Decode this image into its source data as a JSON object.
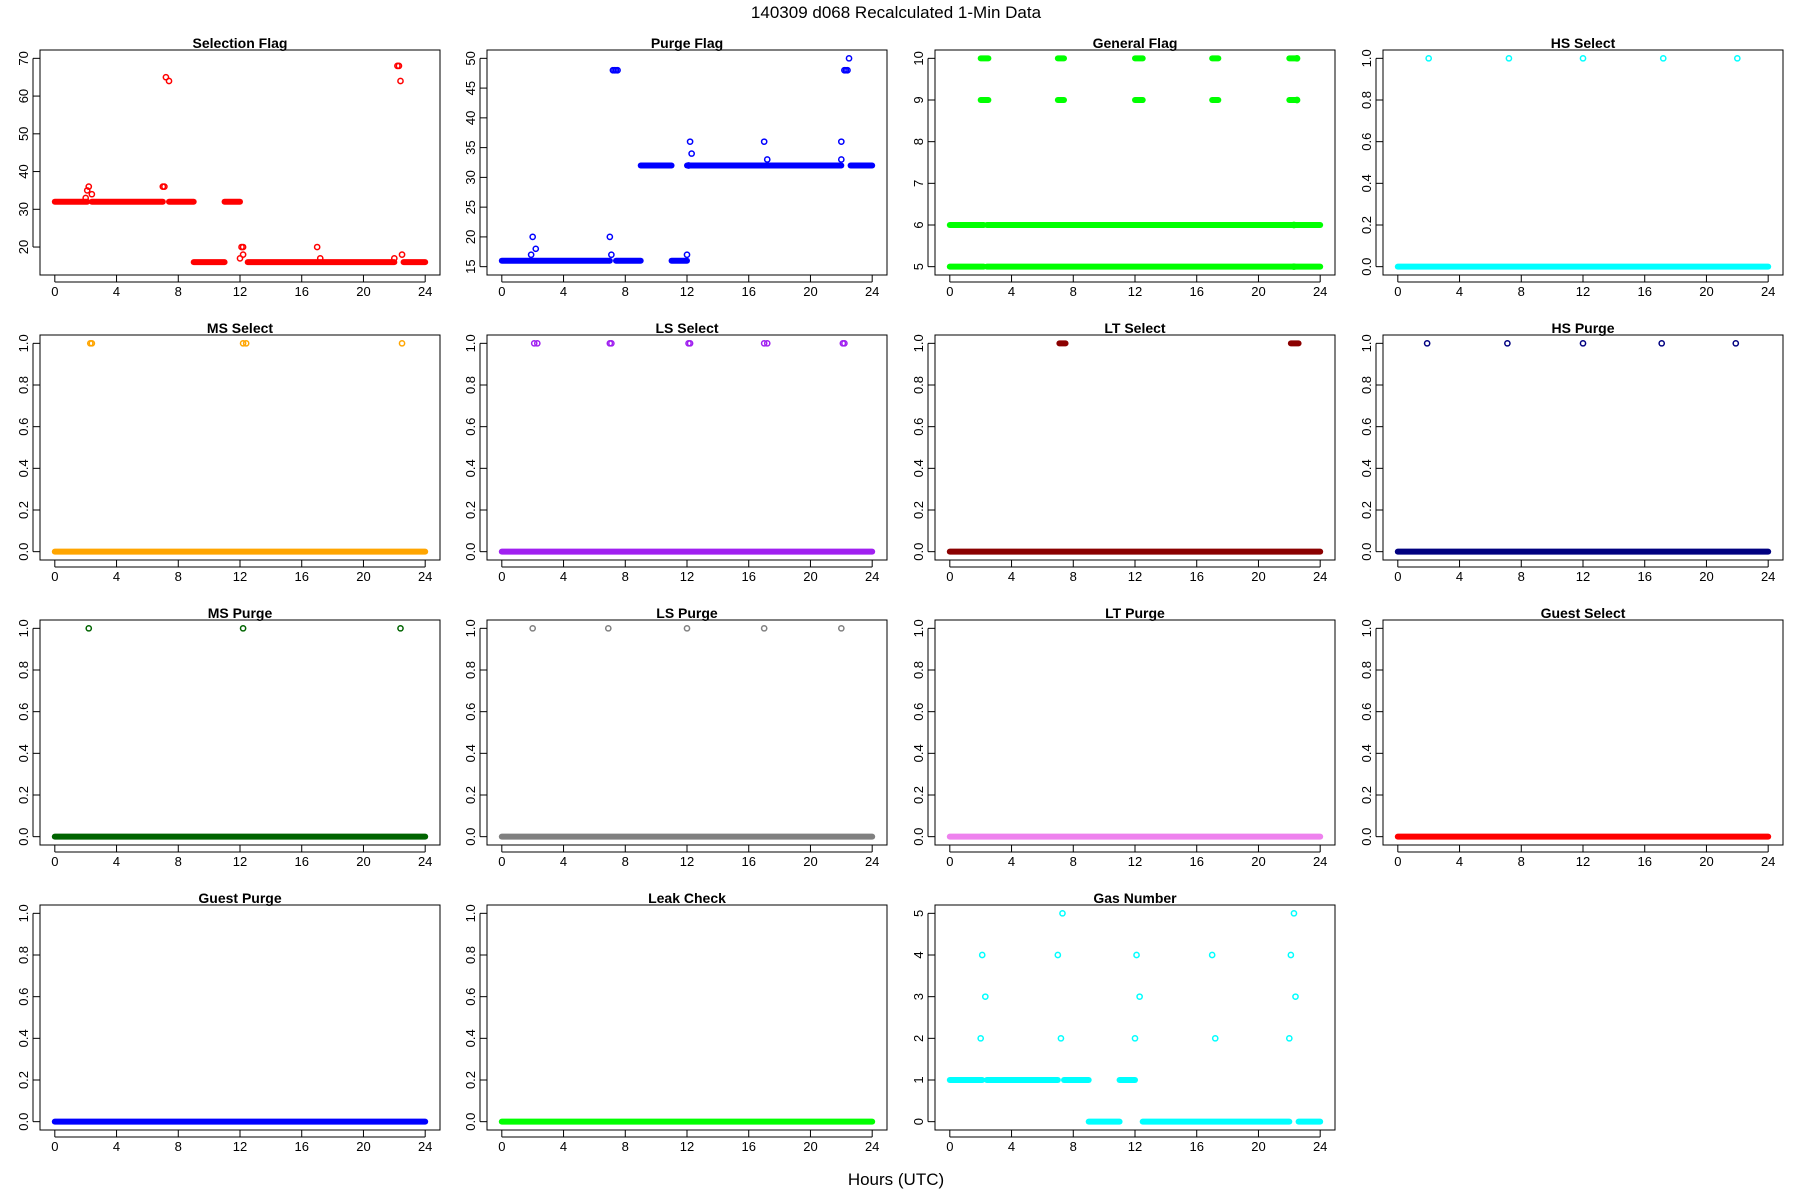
{
  "figure": {
    "title": "140309   d068   Recalculated 1-Min Data",
    "xlabel": "Hours (UTC)"
  },
  "chart_data": [
    {
      "type": "scatter",
      "title": "Selection Flag",
      "color": "#ff0000",
      "xlim": [
        0,
        24
      ],
      "ylim": [
        14.8,
        70
      ],
      "xticks": [
        0,
        4,
        8,
        12,
        16,
        20,
        24
      ],
      "yticks": [
        20,
        30,
        40,
        50,
        60,
        70
      ],
      "runs": [
        [
          0,
          2.1,
          32
        ],
        [
          2.4,
          7,
          32
        ],
        [
          7.4,
          9,
          32
        ],
        [
          9,
          11,
          16
        ],
        [
          11,
          12,
          32
        ],
        [
          12.5,
          22,
          16
        ],
        [
          22.6,
          24,
          16
        ]
      ],
      "points": [
        [
          2,
          33
        ],
        [
          2.1,
          35
        ],
        [
          2.2,
          36
        ],
        [
          2.4,
          34
        ],
        [
          7,
          36
        ],
        [
          7.1,
          36
        ],
        [
          7.2,
          65
        ],
        [
          7.4,
          64
        ],
        [
          12,
          17
        ],
        [
          12.2,
          18
        ],
        [
          12.1,
          20
        ],
        [
          12.2,
          20
        ],
        [
          17,
          20
        ],
        [
          17.2,
          17
        ],
        [
          22,
          17
        ],
        [
          22.2,
          68
        ],
        [
          22.3,
          68
        ],
        [
          22.5,
          18
        ],
        [
          22.4,
          64
        ]
      ]
    },
    {
      "type": "scatter",
      "title": "Purge Flag",
      "color": "#0000ff",
      "xlim": [
        0,
        24
      ],
      "ylim": [
        15,
        50
      ],
      "xticks": [
        0,
        4,
        8,
        12,
        16,
        20,
        24
      ],
      "yticks": [
        15,
        20,
        25,
        30,
        35,
        40,
        45,
        50
      ],
      "runs": [
        [
          0,
          7,
          16
        ],
        [
          7.4,
          9,
          16
        ],
        [
          9,
          11,
          32
        ],
        [
          11,
          12,
          16
        ],
        [
          12,
          22,
          32
        ],
        [
          22.6,
          24,
          32
        ]
      ],
      "points": [
        [
          1.9,
          17
        ],
        [
          2,
          20
        ],
        [
          2.2,
          18
        ],
        [
          7,
          20
        ],
        [
          7.1,
          17
        ],
        [
          7.2,
          48
        ],
        [
          7.3,
          48
        ],
        [
          7.4,
          48
        ],
        [
          7.5,
          48
        ],
        [
          12,
          17
        ],
        [
          12.1,
          32
        ],
        [
          12.2,
          36
        ],
        [
          12.3,
          34
        ],
        [
          17,
          36
        ],
        [
          17.2,
          33
        ],
        [
          22,
          33
        ],
        [
          22,
          36
        ],
        [
          22.2,
          48
        ],
        [
          22.3,
          48
        ],
        [
          22.4,
          48
        ],
        [
          22.5,
          50
        ]
      ]
    },
    {
      "type": "scatter",
      "title": "General Flag",
      "color": "#00ff00",
      "xlim": [
        0,
        24
      ],
      "ylim": [
        5,
        10
      ],
      "xticks": [
        0,
        4,
        8,
        12,
        16,
        20,
        24
      ],
      "yticks": [
        5,
        6,
        7,
        8,
        9,
        10
      ],
      "runs": [
        [
          0,
          2.2,
          5
        ],
        [
          0,
          2.2,
          6
        ],
        [
          2.4,
          24,
          5
        ],
        [
          2.4,
          24,
          6
        ],
        [
          2,
          2.5,
          9
        ],
        [
          2,
          2.5,
          10
        ],
        [
          7,
          7.4,
          9
        ],
        [
          7,
          7.4,
          10
        ],
        [
          12,
          12.5,
          9
        ],
        [
          12,
          12.5,
          10
        ],
        [
          17,
          17.4,
          9
        ],
        [
          17,
          17.4,
          10
        ],
        [
          22,
          22.5,
          9
        ],
        [
          22,
          22.5,
          10
        ]
      ],
      "points": [
        [
          22.5,
          9
        ],
        [
          22.5,
          10
        ],
        [
          22.3,
          5
        ],
        [
          22.3,
          6
        ]
      ]
    },
    {
      "type": "scatter",
      "title": "HS Select",
      "color": "#00ffff",
      "xlim": [
        0,
        24
      ],
      "ylim": [
        0,
        1
      ],
      "xticks": [
        0,
        4,
        8,
        12,
        16,
        20,
        24
      ],
      "yticks": [
        0.0,
        0.2,
        0.4,
        0.6,
        0.8,
        1.0
      ],
      "runs": [
        [
          0,
          24,
          0
        ]
      ],
      "points": [
        [
          2,
          1
        ],
        [
          7.2,
          1
        ],
        [
          12,
          1
        ],
        [
          17.2,
          1
        ],
        [
          22,
          1
        ]
      ]
    },
    {
      "type": "scatter",
      "title": "MS Select",
      "color": "#ffa500",
      "xlim": [
        0,
        24
      ],
      "ylim": [
        0,
        1
      ],
      "xticks": [
        0,
        4,
        8,
        12,
        16,
        20,
        24
      ],
      "yticks": [
        0.0,
        0.2,
        0.4,
        0.6,
        0.8,
        1.0
      ],
      "runs": [
        [
          0,
          24,
          0
        ]
      ],
      "points": [
        [
          2.3,
          1
        ],
        [
          2.4,
          1
        ],
        [
          12.2,
          1
        ],
        [
          12.4,
          1
        ],
        [
          22.5,
          1
        ]
      ]
    },
    {
      "type": "scatter",
      "title": "LS Select",
      "color": "#a020f0",
      "xlim": [
        0,
        24
      ],
      "ylim": [
        0,
        1
      ],
      "xticks": [
        0,
        4,
        8,
        12,
        16,
        20,
        24
      ],
      "yticks": [
        0.0,
        0.2,
        0.4,
        0.6,
        0.8,
        1.0
      ],
      "runs": [
        [
          0,
          24,
          0
        ]
      ],
      "points": [
        [
          2.1,
          1
        ],
        [
          2.3,
          1
        ],
        [
          7,
          1
        ],
        [
          7.1,
          1
        ],
        [
          12.1,
          1
        ],
        [
          12.2,
          1
        ],
        [
          17,
          1
        ],
        [
          17.2,
          1
        ],
        [
          22.1,
          1
        ],
        [
          22.2,
          1
        ]
      ]
    },
    {
      "type": "scatter",
      "title": "LT Select",
      "color": "#8b0000",
      "xlim": [
        0,
        24
      ],
      "ylim": [
        0,
        1
      ],
      "xticks": [
        0,
        4,
        8,
        12,
        16,
        20,
        24
      ],
      "yticks": [
        0.0,
        0.2,
        0.4,
        0.6,
        0.8,
        1.0
      ],
      "runs": [
        [
          0,
          24,
          0
        ],
        [
          7.1,
          7.5,
          1
        ],
        [
          22.1,
          22.6,
          1
        ]
      ],
      "points": []
    },
    {
      "type": "scatter",
      "title": "HS Purge",
      "color": "#000080",
      "xlim": [
        0,
        24
      ],
      "ylim": [
        0,
        1
      ],
      "xticks": [
        0,
        4,
        8,
        12,
        16,
        20,
        24
      ],
      "yticks": [
        0.0,
        0.2,
        0.4,
        0.6,
        0.8,
        1.0
      ],
      "runs": [
        [
          0,
          24,
          0
        ]
      ],
      "points": [
        [
          1.9,
          1
        ],
        [
          7.1,
          1
        ],
        [
          12,
          1
        ],
        [
          17.1,
          1
        ],
        [
          21.9,
          1
        ]
      ]
    },
    {
      "type": "scatter",
      "title": "MS Purge",
      "color": "#006400",
      "xlim": [
        0,
        24
      ],
      "ylim": [
        0,
        1
      ],
      "xticks": [
        0,
        4,
        8,
        12,
        16,
        20,
        24
      ],
      "yticks": [
        0.0,
        0.2,
        0.4,
        0.6,
        0.8,
        1.0
      ],
      "runs": [
        [
          0,
          24,
          0
        ]
      ],
      "points": [
        [
          2.2,
          1
        ],
        [
          12.2,
          1
        ],
        [
          22.4,
          1
        ]
      ]
    },
    {
      "type": "scatter",
      "title": "LS Purge",
      "color": "#808080",
      "xlim": [
        0,
        24
      ],
      "ylim": [
        0,
        1
      ],
      "xticks": [
        0,
        4,
        8,
        12,
        16,
        20,
        24
      ],
      "yticks": [
        0.0,
        0.2,
        0.4,
        0.6,
        0.8,
        1.0
      ],
      "runs": [
        [
          0,
          24,
          0
        ]
      ],
      "points": [
        [
          2,
          1
        ],
        [
          6.9,
          1
        ],
        [
          12,
          1
        ],
        [
          17,
          1
        ],
        [
          22,
          1
        ]
      ]
    },
    {
      "type": "scatter",
      "title": "LT Purge",
      "color": "#ee82ee",
      "xlim": [
        0,
        24
      ],
      "ylim": [
        0,
        1
      ],
      "xticks": [
        0,
        4,
        8,
        12,
        16,
        20,
        24
      ],
      "yticks": [
        0.0,
        0.2,
        0.4,
        0.6,
        0.8,
        1.0
      ],
      "runs": [
        [
          0,
          24,
          0
        ]
      ],
      "points": []
    },
    {
      "type": "scatter",
      "title": "Guest Select",
      "color": "#ff0000",
      "xlim": [
        0,
        24
      ],
      "ylim": [
        0,
        1
      ],
      "xticks": [
        0,
        4,
        8,
        12,
        16,
        20,
        24
      ],
      "yticks": [
        0.0,
        0.2,
        0.4,
        0.6,
        0.8,
        1.0
      ],
      "runs": [
        [
          0,
          24,
          0
        ]
      ],
      "points": []
    },
    {
      "type": "scatter",
      "title": "Guest Purge",
      "color": "#0000ff",
      "xlim": [
        0,
        24
      ],
      "ylim": [
        0,
        1
      ],
      "xticks": [
        0,
        4,
        8,
        12,
        16,
        20,
        24
      ],
      "yticks": [
        0.0,
        0.2,
        0.4,
        0.6,
        0.8,
        1.0
      ],
      "runs": [
        [
          0,
          24,
          0
        ]
      ],
      "points": []
    },
    {
      "type": "scatter",
      "title": "Leak Check",
      "color": "#00ff00",
      "xlim": [
        0,
        24
      ],
      "ylim": [
        0,
        1
      ],
      "xticks": [
        0,
        4,
        8,
        12,
        16,
        20,
        24
      ],
      "yticks": [
        0.0,
        0.2,
        0.4,
        0.6,
        0.8,
        1.0
      ],
      "runs": [
        [
          0,
          24,
          0
        ]
      ],
      "points": []
    },
    {
      "type": "scatter",
      "title": "Gas Number",
      "color": "#00ffff",
      "xlim": [
        0,
        24
      ],
      "ylim": [
        0,
        5
      ],
      "xticks": [
        0,
        4,
        8,
        12,
        16,
        20,
        24
      ],
      "yticks": [
        0,
        1,
        2,
        3,
        4,
        5
      ],
      "runs": [
        [
          0,
          2.1,
          1
        ],
        [
          2.4,
          7,
          1
        ],
        [
          7.4,
          9,
          1
        ],
        [
          9,
          11,
          0
        ],
        [
          11,
          12,
          1
        ],
        [
          12.5,
          22,
          0
        ],
        [
          22.6,
          24,
          0
        ]
      ],
      "points": [
        [
          2,
          2
        ],
        [
          2.1,
          4
        ],
        [
          2.3,
          3
        ],
        [
          7,
          4
        ],
        [
          7.2,
          2
        ],
        [
          7.3,
          5
        ],
        [
          12,
          2
        ],
        [
          12.1,
          4
        ],
        [
          12.3,
          3
        ],
        [
          17,
          4
        ],
        [
          17.2,
          2
        ],
        [
          22,
          2
        ],
        [
          22.1,
          4
        ],
        [
          22.3,
          5
        ],
        [
          22.4,
          3
        ]
      ]
    }
  ]
}
